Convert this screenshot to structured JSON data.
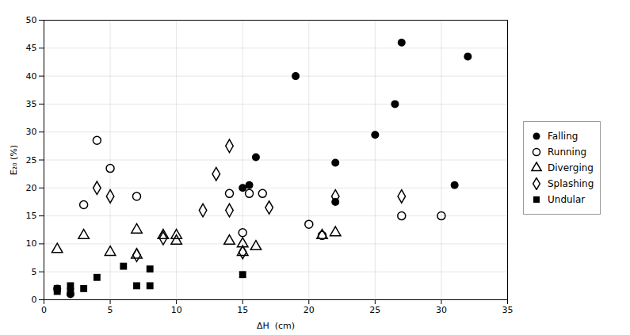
{
  "chart_data": {
    "type": "scatter",
    "xlabel": "ΔH  (cm)",
    "ylabel": "E₂₀ (%)",
    "xlim": [
      0,
      35
    ],
    "ylim": [
      0,
      50
    ],
    "xticks": [
      0,
      5,
      10,
      15,
      20,
      25,
      30,
      35
    ],
    "yticks": [
      0,
      5,
      10,
      15,
      20,
      25,
      30,
      35,
      40,
      45,
      50
    ],
    "grid": true,
    "legend": "right",
    "series": [
      {
        "name": "Falling",
        "color": "black",
        "marker": "circle",
        "x": [
          1,
          2,
          15,
          15.5,
          16,
          19,
          22,
          22,
          25,
          26.5,
          27,
          31,
          32
        ],
        "values": [
          2,
          1,
          20,
          20.5,
          25.5,
          40,
          17.5,
          24.5,
          29.5,
          35,
          46,
          20.5,
          43.5
        ]
      },
      {
        "name": "Running",
        "color": "black",
        "marker": "circle-open",
        "x": [
          3,
          4,
          5,
          7,
          14,
          15,
          15.5,
          16.5,
          20,
          21,
          27,
          30
        ],
        "values": [
          17,
          28.5,
          23.5,
          18.5,
          19,
          12,
          19,
          19,
          13.5,
          11.5,
          15,
          15
        ]
      },
      {
        "name": "Diverging",
        "color": "black",
        "marker": "triangle-open",
        "x": [
          1,
          3,
          5,
          7,
          7,
          9,
          10,
          10,
          14,
          15,
          15,
          16,
          21,
          22
        ],
        "values": [
          9,
          11.5,
          8.5,
          8,
          12.5,
          11.5,
          10.5,
          11.5,
          10.5,
          10,
          8.5,
          9.5,
          11.5,
          12
        ]
      },
      {
        "name": "Splashing",
        "color": "black",
        "marker": "diamond-open",
        "x": [
          4,
          5,
          7,
          9,
          12,
          13,
          14,
          14,
          15,
          17,
          22,
          27
        ],
        "values": [
          20,
          18.5,
          8,
          11,
          16,
          22.5,
          27.5,
          16,
          8.5,
          16.5,
          18.5,
          18.5
        ]
      },
      {
        "name": "Undular",
        "color": "black",
        "marker": "square",
        "x": [
          1,
          1,
          2,
          2,
          3,
          4,
          6,
          7,
          8,
          8,
          15
        ],
        "values": [
          1.5,
          2,
          1.5,
          2.5,
          2,
          4,
          6,
          2.5,
          2.5,
          5.5,
          4.5
        ]
      }
    ]
  }
}
